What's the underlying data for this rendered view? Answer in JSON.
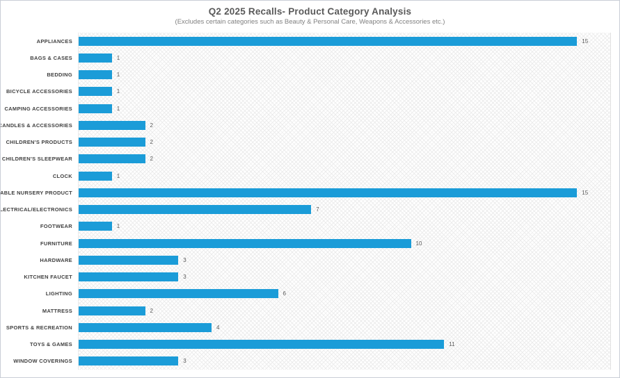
{
  "chart_data": {
    "type": "bar",
    "orientation": "horizontal",
    "title": "Q2 2025 Recalls- Product Category Analysis",
    "subtitle": "(Excludes certain categories such as Beauty & Personal Care, Weapons & Accessories etc.)",
    "categories": [
      "APPLIANCES",
      "BAGS & CASES",
      "BEDDING",
      "BICYCLE ACCESSORIES",
      "CAMPING ACCESSORIES",
      "CANDLES & ACCESSORIES",
      "CHILDREN'S PRODUCTS",
      "CHILDREN'S SLEEPWEAR",
      "CLOCK",
      "DURABLE NURSERY PRODUCT",
      "ELECTRICAL/ELECTRONICS",
      "FOOTWEAR",
      "FURNITURE",
      "HARDWARE",
      "KITCHEN FAUCET",
      "LIGHTING",
      "MATTRESS",
      "SPORTS & RECREATION",
      "TOYS & GAMES",
      "WINDOW COVERINGS"
    ],
    "values": [
      15,
      1,
      1,
      1,
      1,
      2,
      2,
      2,
      1,
      15,
      7,
      1,
      10,
      3,
      3,
      6,
      2,
      4,
      11,
      3
    ],
    "xlabel": "",
    "ylabel": "",
    "xlim": [
      0,
      16
    ],
    "value_labels": true,
    "grid": false,
    "legend": false
  },
  "colors": {
    "bar": "#1b9cd8",
    "title_text": "#595959",
    "subtitle_text": "#808080",
    "category_text": "#404040",
    "value_text": "#595959",
    "outer_border": "#c9cdd6",
    "plot_hatch": "#ececec"
  }
}
